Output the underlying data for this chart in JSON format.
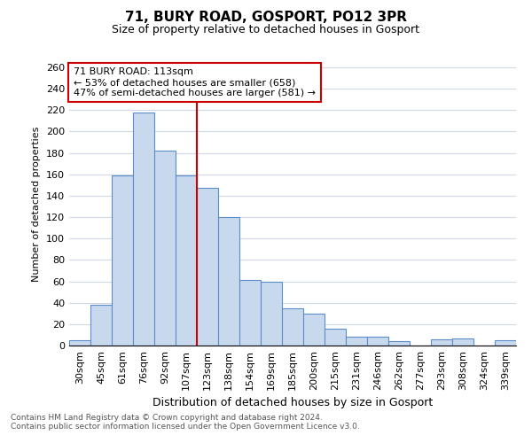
{
  "title": "71, BURY ROAD, GOSPORT, PO12 3PR",
  "subtitle": "Size of property relative to detached houses in Gosport",
  "xlabel": "Distribution of detached houses by size in Gosport",
  "ylabel": "Number of detached properties",
  "bin_labels": [
    "30sqm",
    "45sqm",
    "61sqm",
    "76sqm",
    "92sqm",
    "107sqm",
    "123sqm",
    "138sqm",
    "154sqm",
    "169sqm",
    "185sqm",
    "200sqm",
    "215sqm",
    "231sqm",
    "246sqm",
    "262sqm",
    "277sqm",
    "293sqm",
    "308sqm",
    "324sqm",
    "339sqm"
  ],
  "bin_values": [
    5,
    38,
    159,
    218,
    182,
    159,
    147,
    120,
    61,
    60,
    35,
    30,
    16,
    8,
    8,
    4,
    0,
    6,
    7,
    0,
    5
  ],
  "bar_color": "#c9d9ed",
  "bar_edge_color": "#5b8dc9",
  "vline_x_index": 5.5,
  "vline_color": "#cc0000",
  "annotation_line1": "71 BURY ROAD: 113sqm",
  "annotation_line2": "← 53% of detached houses are smaller (658)",
  "annotation_line3": "47% of semi-detached houses are larger (581) →",
  "annotation_box_color": "#ffffff",
  "annotation_box_edge_color": "#cc0000",
  "ylim": [
    0,
    265
  ],
  "yticks": [
    0,
    20,
    40,
    60,
    80,
    100,
    120,
    140,
    160,
    180,
    200,
    220,
    240,
    260
  ],
  "footer_line1": "Contains HM Land Registry data © Crown copyright and database right 2024.",
  "footer_line2": "Contains public sector information licensed under the Open Government Licence v3.0.",
  "background_color": "#ffffff",
  "grid_color": "#d0d8e8",
  "title_fontsize": 11,
  "subtitle_fontsize": 9,
  "ylabel_fontsize": 8,
  "xlabel_fontsize": 9,
  "tick_fontsize": 8,
  "annotation_fontsize": 8,
  "footer_fontsize": 6.5
}
